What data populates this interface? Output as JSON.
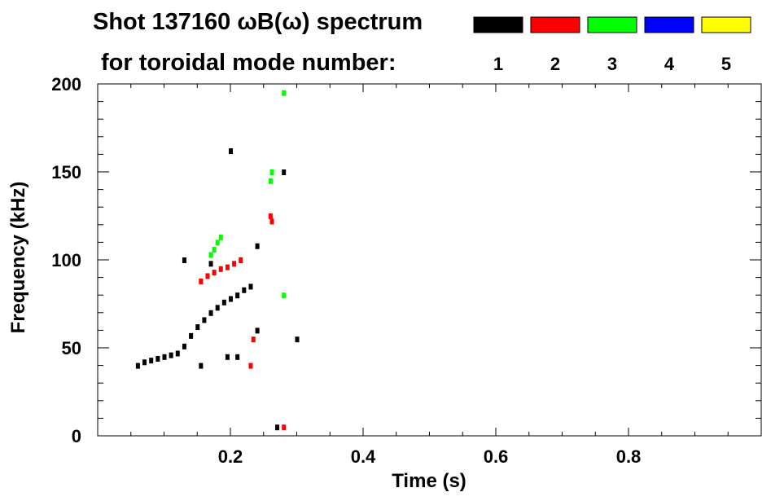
{
  "title_line1": "Shot 137160 ωB(ω) spectrum",
  "title_line2": "for toroidal mode number:",
  "chart_data": {
    "type": "scatter",
    "xlabel": "Time (s)",
    "ylabel": "Frequency (kHz)",
    "xlim": [
      0,
      1.0
    ],
    "ylim": [
      0,
      200
    ],
    "x_ticks": [
      0.2,
      0.4,
      0.6,
      0.8
    ],
    "x_tick_labels": [
      "0.2",
      "0.4",
      "0.6",
      "0.8"
    ],
    "y_ticks": [
      0,
      50,
      100,
      150,
      200
    ],
    "y_tick_labels": [
      "0",
      "50",
      "100",
      "150",
      "200"
    ],
    "grid": false,
    "legend": {
      "placement": "top",
      "entries": [
        {
          "label": "1",
          "color": "#000000"
        },
        {
          "label": "2",
          "color": "#ff0000"
        },
        {
          "label": "3",
          "color": "#00ff00"
        },
        {
          "label": "4",
          "color": "#0000ff"
        },
        {
          "label": "5",
          "color": "#ffff00"
        }
      ]
    },
    "series": [
      {
        "name": "1",
        "color": "#000000",
        "points": [
          [
            0.06,
            40
          ],
          [
            0.07,
            42
          ],
          [
            0.08,
            43
          ],
          [
            0.09,
            44
          ],
          [
            0.1,
            45
          ],
          [
            0.11,
            46
          ],
          [
            0.12,
            47
          ],
          [
            0.13,
            51
          ],
          [
            0.14,
            57
          ],
          [
            0.15,
            62
          ],
          [
            0.16,
            66
          ],
          [
            0.17,
            70
          ],
          [
            0.18,
            73
          ],
          [
            0.19,
            76
          ],
          [
            0.2,
            78
          ],
          [
            0.21,
            80
          ],
          [
            0.22,
            83
          ],
          [
            0.23,
            85
          ],
          [
            0.17,
            98
          ],
          [
            0.13,
            100
          ],
          [
            0.24,
            108
          ],
          [
            0.27,
            5
          ],
          [
            0.3,
            55
          ],
          [
            0.155,
            40
          ],
          [
            0.195,
            45
          ],
          [
            0.21,
            45
          ],
          [
            0.24,
            60
          ],
          [
            0.2,
            162
          ],
          [
            0.28,
            150
          ]
        ]
      },
      {
        "name": "2",
        "color": "#ff0000",
        "points": [
          [
            0.155,
            88
          ],
          [
            0.165,
            91
          ],
          [
            0.175,
            93
          ],
          [
            0.185,
            95
          ],
          [
            0.195,
            96
          ],
          [
            0.205,
            98
          ],
          [
            0.215,
            100
          ],
          [
            0.26,
            125
          ],
          [
            0.262,
            122
          ],
          [
            0.234,
            55
          ],
          [
            0.23,
            40
          ],
          [
            0.28,
            5
          ]
        ]
      },
      {
        "name": "3",
        "color": "#00ff00",
        "points": [
          [
            0.17,
            103
          ],
          [
            0.175,
            106
          ],
          [
            0.18,
            110
          ],
          [
            0.185,
            113
          ],
          [
            0.26,
            145
          ],
          [
            0.262,
            150
          ],
          [
            0.28,
            195
          ],
          [
            0.28,
            80
          ]
        ]
      },
      {
        "name": "4",
        "color": "#0000ff",
        "points": []
      },
      {
        "name": "5",
        "color": "#ffff00",
        "points": []
      }
    ]
  }
}
